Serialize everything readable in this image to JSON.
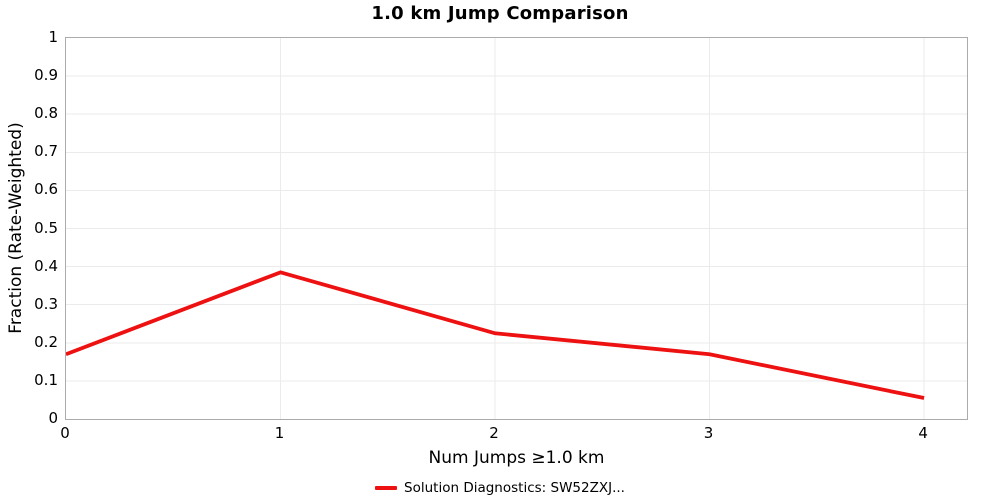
{
  "chart_data": {
    "type": "line",
    "title": "1.0 km Jump Comparison",
    "xlabel": "Num Jumps ≥1.0 km",
    "ylabel": "Fraction (Rate-Weighted)",
    "x": [
      0,
      1,
      2,
      3,
      4
    ],
    "series": [
      {
        "name": "Solution Diagnostics: SW52ZXJ...",
        "color": "#ee1111",
        "values": [
          0.17,
          0.385,
          0.225,
          0.17,
          0.055
        ]
      }
    ],
    "xlim": [
      0,
      4.2
    ],
    "ylim": [
      0,
      1
    ],
    "xticks": [
      0,
      1,
      2,
      3,
      4
    ],
    "xtick_labels": [
      "0",
      "1",
      "2",
      "3",
      "4"
    ],
    "yticks": [
      0,
      0.1,
      0.2,
      0.3,
      0.4,
      0.5,
      0.6,
      0.7,
      0.8,
      0.9,
      1
    ],
    "ytick_labels": [
      "0",
      "0.1",
      "0.2",
      "0.3",
      "0.4",
      "0.5",
      "0.6",
      "0.7",
      "0.8",
      "0.9",
      "1"
    ],
    "grid": true,
    "grid_color": "#ebebeb",
    "border_color": "#ababab",
    "legend_position": "bottom-center",
    "line_width": 3.8
  }
}
